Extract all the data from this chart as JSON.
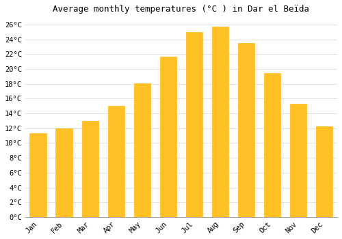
{
  "title": "Average monthly temperatures (°C ) in Dar el Beïda",
  "months": [
    "Jan",
    "Feb",
    "Mar",
    "Apr",
    "May",
    "Jun",
    "Jul",
    "Aug",
    "Sep",
    "Oct",
    "Nov",
    "Dec"
  ],
  "values": [
    11.3,
    12.0,
    13.0,
    15.0,
    18.1,
    21.7,
    25.0,
    25.7,
    23.5,
    19.5,
    15.3,
    12.3
  ],
  "bar_color": "#FFC125",
  "bar_edge_color": "#FFB000",
  "background_color": "#FFFFFF",
  "plot_bg_color": "#FFFFFF",
  "grid_color": "#DDDDDD",
  "ylim": [
    0,
    27
  ],
  "ytick_step": 2,
  "title_fontsize": 9,
  "tick_fontsize": 7.5,
  "font_family": "monospace"
}
